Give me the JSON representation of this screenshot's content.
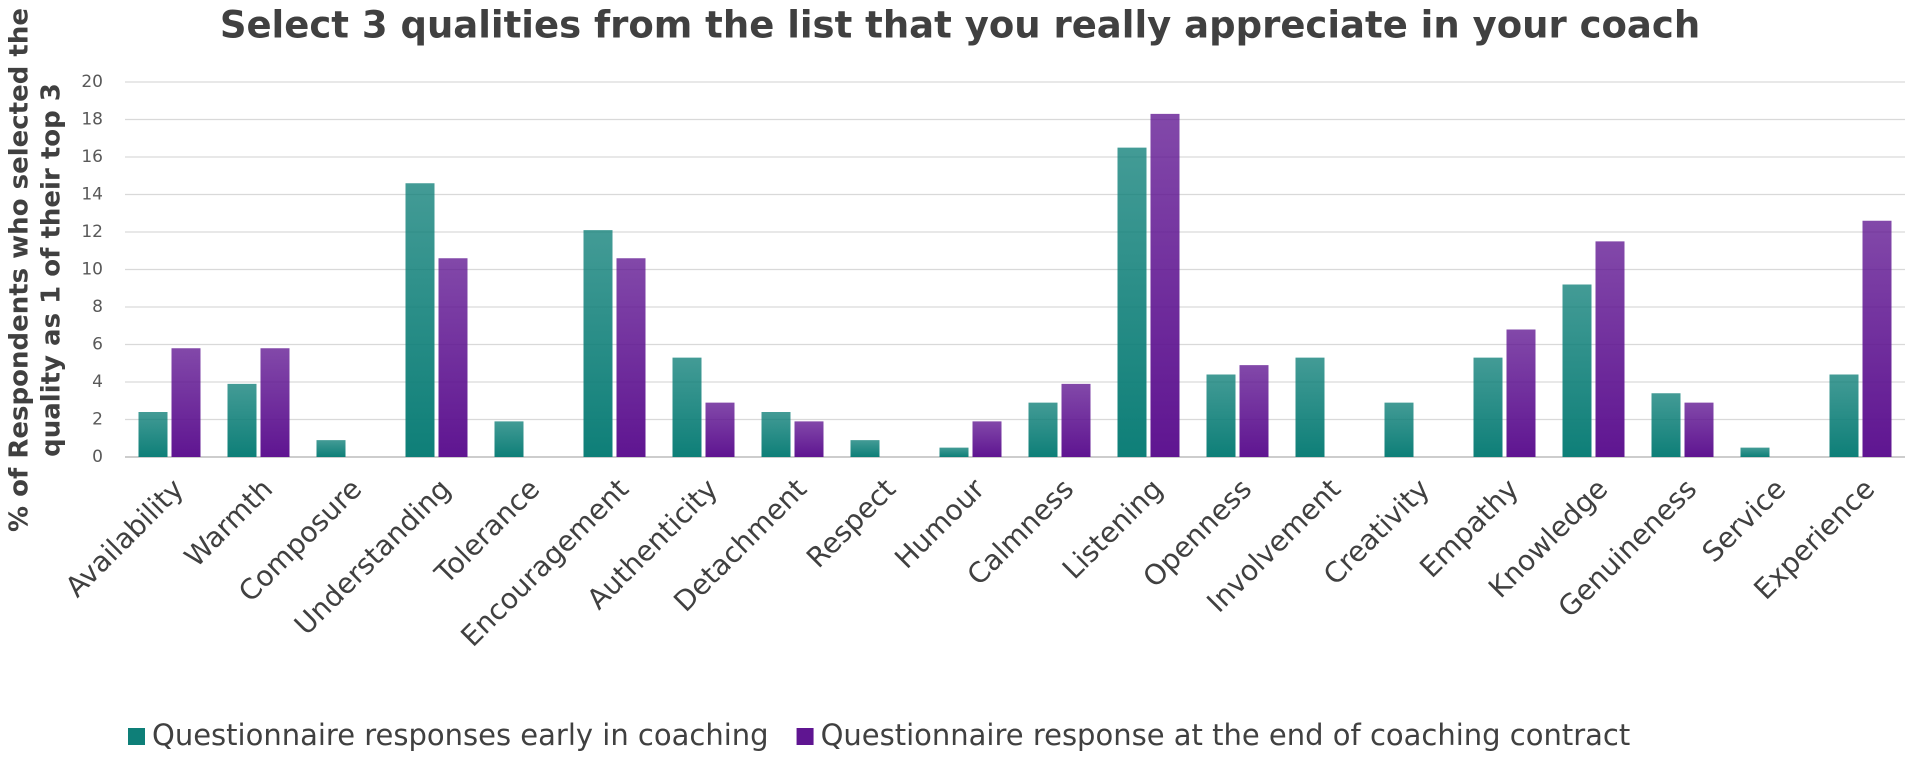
{
  "chart_data": {
    "type": "bar",
    "title": "Select 3 qualities from the list that you really appreciate in your coach",
    "y_label": [
      "% of Respondents who selected the",
      "quality as 1 of their top 3"
    ],
    "categories": [
      "Availability",
      "Warmth",
      "Composure",
      "Understanding",
      "Tolerance",
      "Encouragement",
      "Authenticity",
      "Detachment",
      "Respect",
      "Humour",
      "Calmness",
      "Listening",
      "Openness",
      "Involvement",
      "Creativity",
      "Empathy",
      "Knowledge",
      "Genuineness",
      "Service",
      "Experience"
    ],
    "series": [
      {
        "name": "Questionnaire responses early in coaching",
        "color": "#0e7f78",
        "values": [
          2.4,
          3.9,
          0.9,
          14.6,
          1.9,
          12.1,
          5.3,
          2.4,
          0.9,
          0.5,
          2.9,
          16.5,
          4.4,
          5.3,
          2.9,
          5.3,
          9.2,
          3.4,
          0.5,
          4.4
        ]
      },
      {
        "name": "Questionnaire response at the end of coaching contract",
        "color": "#5f1591",
        "values": [
          5.8,
          5.8,
          0,
          10.6,
          0,
          10.6,
          2.9,
          1.9,
          0,
          1.9,
          3.9,
          18.3,
          4.9,
          0,
          0,
          6.8,
          11.5,
          2.9,
          0,
          12.6
        ]
      }
    ],
    "ylim": [
      0,
      20
    ],
    "yticks": [
      0,
      2,
      4,
      6,
      8,
      10,
      12,
      14,
      16,
      18,
      20
    ],
    "grid": true
  }
}
